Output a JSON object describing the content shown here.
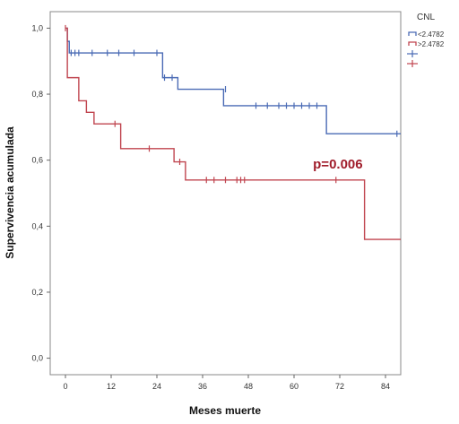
{
  "chart_data": {
    "type": "line",
    "step": true,
    "xlabel": "Meses muerte",
    "ylabel": "Supervivencia acumulada",
    "xlim": [
      -4,
      88
    ],
    "ylim": [
      -0.05,
      1.05
    ],
    "x_ticks": [
      0,
      12,
      24,
      36,
      48,
      60,
      72,
      84
    ],
    "x_tick_labels": [
      "0",
      "12",
      "24",
      "36",
      "48",
      "60",
      "72",
      "84"
    ],
    "y_ticks": [
      0.0,
      0.2,
      0.4,
      0.6,
      0.8,
      1.0
    ],
    "y_tick_labels": [
      "0,0",
      "0,2",
      "0,4",
      "0,6",
      "0,8",
      "1,0"
    ],
    "legend": {
      "title": "CNL",
      "placement": "top-right",
      "entries": [
        "<2.4782",
        ">2.4782",
        "",
        ""
      ]
    },
    "annotation": {
      "text": "p=0.006",
      "x": 71.5,
      "y": 0.575,
      "color": "#a01c2a"
    },
    "series": [
      {
        "name": "<2.4782",
        "color": "#4a6bb5",
        "steps": [
          [
            0,
            1.0
          ],
          [
            0.5,
            0.96
          ],
          [
            1,
            0.925
          ],
          [
            25,
            0.925
          ],
          [
            25.5,
            0.85
          ],
          [
            29,
            0.85
          ],
          [
            29.5,
            0.815
          ],
          [
            41,
            0.815
          ],
          [
            41.5,
            0.765
          ],
          [
            68,
            0.765
          ],
          [
            68.5,
            0.68
          ],
          [
            88,
            0.68
          ]
        ],
        "censored": [
          [
            1.5,
            0.925
          ],
          [
            2.5,
            0.925
          ],
          [
            3.5,
            0.925
          ],
          [
            7,
            0.925
          ],
          [
            11,
            0.925
          ],
          [
            14,
            0.925
          ],
          [
            18,
            0.925
          ],
          [
            24,
            0.925
          ],
          [
            26,
            0.85
          ],
          [
            28,
            0.85
          ],
          [
            42,
            0.815
          ],
          [
            50,
            0.765
          ],
          [
            53,
            0.765
          ],
          [
            56,
            0.765
          ],
          [
            58,
            0.765
          ],
          [
            60,
            0.765
          ],
          [
            62,
            0.765
          ],
          [
            64,
            0.765
          ],
          [
            66,
            0.765
          ],
          [
            87,
            0.68
          ]
        ]
      },
      {
        "name": ">2.4782",
        "color": "#c0454f",
        "steps": [
          [
            0,
            1.0
          ],
          [
            0.5,
            0.85
          ],
          [
            3,
            0.85
          ],
          [
            3.5,
            0.78
          ],
          [
            5,
            0.78
          ],
          [
            5.5,
            0.745
          ],
          [
            7,
            0.745
          ],
          [
            7.5,
            0.71
          ],
          [
            14,
            0.71
          ],
          [
            14.5,
            0.635
          ],
          [
            28,
            0.635
          ],
          [
            28.5,
            0.595
          ],
          [
            31,
            0.595
          ],
          [
            31.5,
            0.54
          ],
          [
            78,
            0.54
          ],
          [
            78.5,
            0.36
          ],
          [
            88,
            0.36
          ]
        ],
        "censored": [
          [
            0,
            1.0
          ],
          [
            13,
            0.71
          ],
          [
            22,
            0.635
          ],
          [
            30,
            0.595
          ],
          [
            37,
            0.54
          ],
          [
            39,
            0.54
          ],
          [
            42,
            0.54
          ],
          [
            45,
            0.54
          ],
          [
            46,
            0.54
          ],
          [
            47,
            0.54
          ],
          [
            71,
            0.54
          ]
        ]
      }
    ]
  }
}
